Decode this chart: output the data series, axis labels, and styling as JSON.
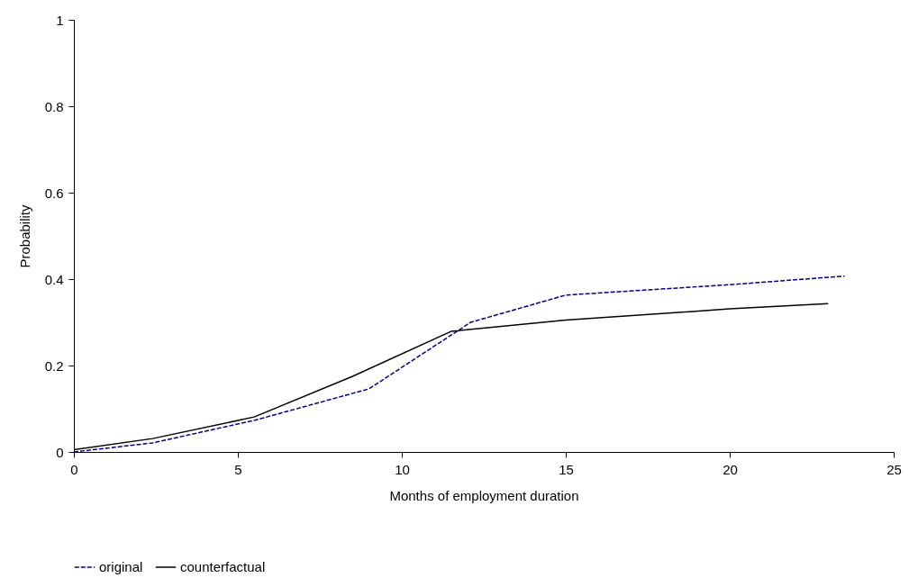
{
  "chart_data": {
    "type": "line",
    "xlabel": "Months of employment duration",
    "ylabel": "Probability",
    "xlim": [
      0,
      25
    ],
    "ylim": [
      0,
      1
    ],
    "xticks": [
      0,
      5,
      10,
      15,
      20,
      25
    ],
    "yticks": [
      0,
      0.2,
      0.4,
      0.6,
      0.8,
      1
    ],
    "grid": false,
    "legend": "bottom",
    "marker": "none",
    "series": [
      {
        "name": "original",
        "color": "#000080",
        "line_style": "dashed",
        "x": [
          0,
          2.4,
          5.5,
          9.0,
          12.1,
          15.0,
          20.0,
          23.5
        ],
        "values": [
          0,
          0.021,
          0.073,
          0.146,
          0.3,
          0.363,
          0.387,
          0.407
        ]
      },
      {
        "name": "counterfactual",
        "color": "#000000",
        "line_style": "solid",
        "x": [
          0,
          2.4,
          5.5,
          8.5,
          11.5,
          15.0,
          20.0,
          23.0
        ],
        "values": [
          0.005,
          0.031,
          0.081,
          0.175,
          0.279,
          0.305,
          0.331,
          0.343
        ]
      }
    ]
  }
}
